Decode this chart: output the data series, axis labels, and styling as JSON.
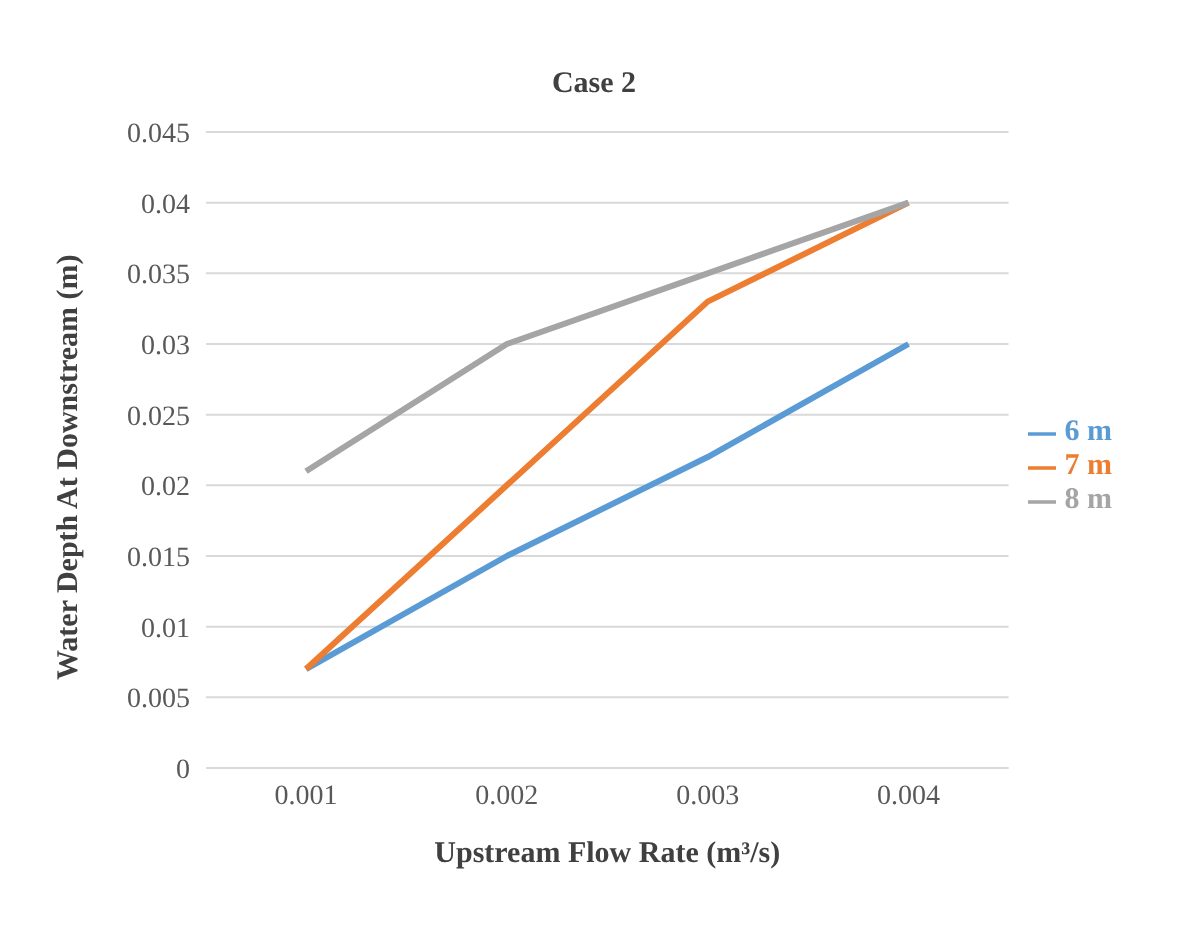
{
  "chart_data": {
    "type": "line",
    "title": "Case 2",
    "xlabel": "Upstream Flow Rate (m³/s)",
    "ylabel": "Water Depth At Downstream (m)",
    "categories": [
      "0.001",
      "0.002",
      "0.003",
      "0.004"
    ],
    "series": [
      {
        "name": "6 m",
        "color": "#5b9bd5",
        "values": [
          0.007,
          0.015,
          0.022,
          0.03
        ]
      },
      {
        "name": "7 m",
        "color": "#ed7d31",
        "values": [
          0.007,
          0.02,
          0.033,
          0.04
        ]
      },
      {
        "name": "8 m",
        "color": "#a5a5a5",
        "values": [
          0.021,
          0.03,
          0.035,
          0.04
        ]
      }
    ],
    "ylim": [
      0,
      0.045
    ],
    "yticks": [
      0,
      0.005,
      0.01,
      0.015,
      0.02,
      0.025,
      0.03,
      0.035,
      0.04,
      0.045
    ],
    "grid": "y",
    "legend": "right",
    "marker": "none",
    "line_style": "solid"
  }
}
